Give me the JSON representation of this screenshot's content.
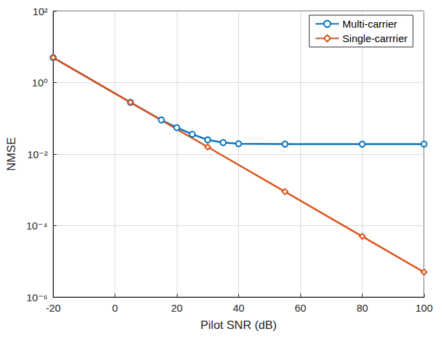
{
  "chart_data": {
    "type": "line",
    "x_label": "Pilot SNR (dB)",
    "y_label": "NMSE",
    "log": "y",
    "grid": true,
    "legend": "top-right",
    "xlim": [
      -20,
      100
    ],
    "xticks": [
      -20,
      0,
      20,
      40,
      60,
      80,
      100
    ],
    "ylim": [
      1e-06,
      100
    ],
    "yticks": [
      {
        "value": 1e-06,
        "label": "10⁻⁶"
      },
      {
        "value": 0.0001,
        "label": "10⁻⁴"
      },
      {
        "value": 0.01,
        "label": "10⁻²"
      },
      {
        "value": 1,
        "label": "10⁰"
      },
      {
        "value": 100,
        "label": "10²"
      }
    ],
    "series": [
      {
        "name": "Multi-carrier",
        "color": "#0072BD",
        "marker": "circle",
        "line_style": "solid",
        "x": [
          -20,
          5,
          15,
          20,
          25,
          30,
          35,
          40,
          55,
          80,
          100
        ],
        "values": [
          5,
          0.28,
          0.09,
          0.055,
          0.036,
          0.025,
          0.021,
          0.0195,
          0.019,
          0.019,
          0.019
        ]
      },
      {
        "name": "Single-carrrier",
        "color": "#D95319",
        "marker": "diamond",
        "line_style": "solid",
        "x": [
          -20,
          5,
          30,
          55,
          80,
          100
        ],
        "values": [
          5,
          0.28,
          0.0158,
          0.00089,
          5e-05,
          5e-06
        ]
      }
    ]
  }
}
